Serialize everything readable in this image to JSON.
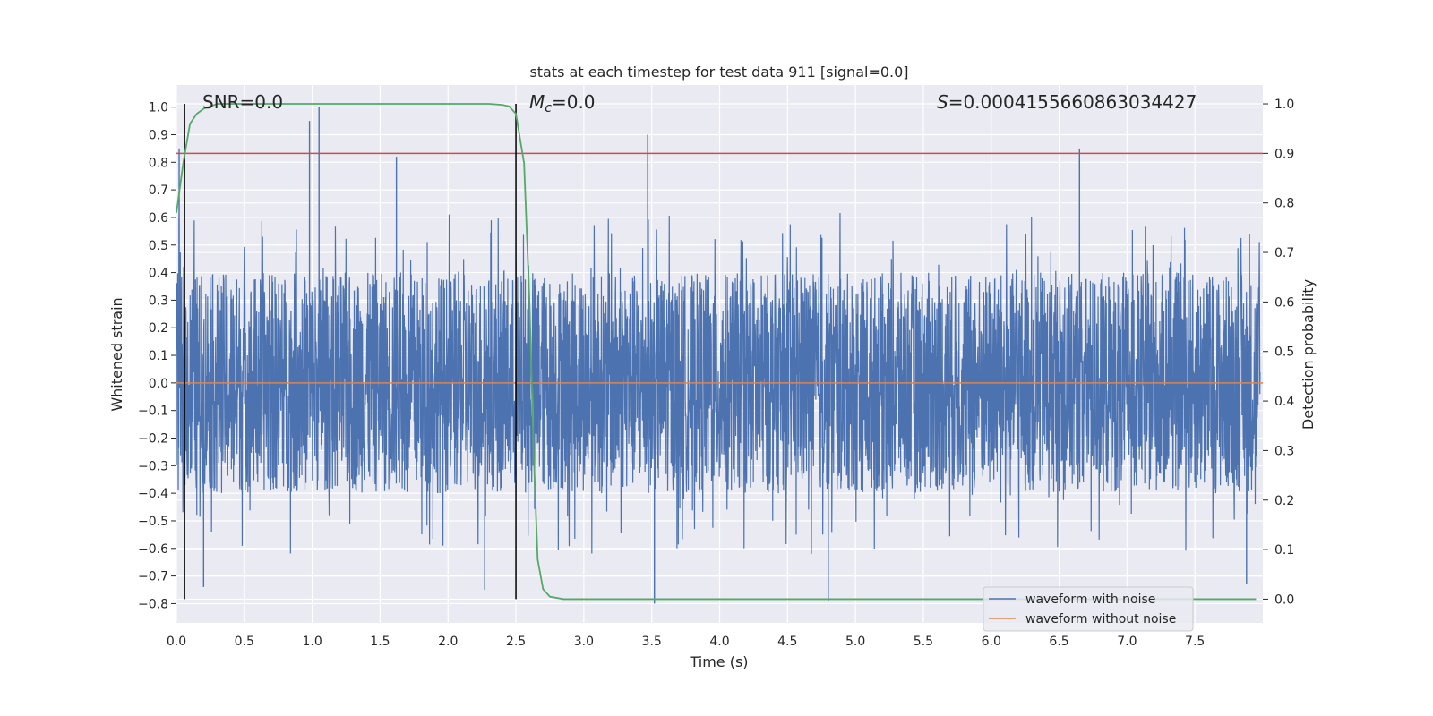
{
  "chart_data": {
    "type": "line",
    "title": "stats at each timestep for test data 911 [signal=0.0]",
    "xlabel": "Time (s)",
    "ylabel_left": "Whitened strain",
    "ylabel_right": "Detection probability",
    "xlim": [
      0.0,
      8.0
    ],
    "ylim_left": [
      -0.87,
      1.08
    ],
    "ylim_right": [
      -0.048,
      1.038
    ],
    "x_ticks": [
      "0.0",
      "0.5",
      "1.0",
      "1.5",
      "2.0",
      "2.5",
      "3.0",
      "3.5",
      "4.0",
      "4.5",
      "5.0",
      "5.5",
      "6.0",
      "6.5",
      "7.0",
      "7.5"
    ],
    "y_left_ticks": [
      "−0.8",
      "−0.7",
      "−0.6",
      "−0.5",
      "−0.4",
      "−0.3",
      "−0.2",
      "−0.1",
      "0.0",
      "0.1",
      "0.2",
      "0.3",
      "0.4",
      "0.5",
      "0.6",
      "0.7",
      "0.8",
      "0.9",
      "1.0"
    ],
    "y_right_ticks": [
      "0.0",
      "0.1",
      "0.2",
      "0.3",
      "0.4",
      "0.5",
      "0.6",
      "0.7",
      "0.8",
      "0.9",
      "1.0"
    ],
    "grid": true,
    "legend_position": "lower-right",
    "annotations": {
      "snr": "SNR=0.0",
      "mc_symbol": "M",
      "mc_sub": "c",
      "mc_value": "=0.0",
      "s_symbol": "S",
      "s_value": "=0.0004155660863034427"
    },
    "series": [
      {
        "name": "waveform with noise",
        "axis": "left",
        "color": "#4c72b0",
        "typical_amplitude": 0.4,
        "peaks": [
          {
            "x": 0.02,
            "y": 0.85
          },
          {
            "x": 0.98,
            "y": 0.95
          },
          {
            "x": 1.05,
            "y": 1.0
          },
          {
            "x": 1.62,
            "y": 0.82
          },
          {
            "x": 3.47,
            "y": 0.9
          },
          {
            "x": 6.65,
            "y": 0.85
          },
          {
            "x": 0.2,
            "y": -0.74
          },
          {
            "x": 3.52,
            "y": -0.8
          },
          {
            "x": 4.8,
            "y": -0.79
          },
          {
            "x": 7.88,
            "y": -0.73
          },
          {
            "x": 2.27,
            "y": -0.75
          }
        ]
      },
      {
        "name": "waveform without noise",
        "axis": "left",
        "color": "#dd8452",
        "x": [
          0.0,
          8.0
        ],
        "y": [
          0.0,
          0.0
        ]
      },
      {
        "axis": "right",
        "color": "#55a868",
        "x": [
          0.0,
          0.05,
          0.1,
          0.15,
          0.2,
          0.25,
          0.3,
          0.4,
          0.5,
          2.3,
          2.4,
          2.45,
          2.5,
          2.56,
          2.6,
          2.63,
          2.66,
          2.7,
          2.75,
          2.85,
          7.95
        ],
        "y": [
          0.78,
          0.88,
          0.96,
          0.98,
          0.99,
          0.995,
          1.0,
          1.0,
          1.0,
          1.0,
          0.998,
          0.995,
          0.98,
          0.88,
          0.6,
          0.3,
          0.08,
          0.02,
          0.005,
          0.0,
          0.0
        ]
      }
    ],
    "threshold": {
      "axis": "right",
      "y": 0.9,
      "color": "#c44e52"
    },
    "vlines": [
      {
        "x": 0.06,
        "color": "#000000"
      },
      {
        "x": 2.5,
        "color": "#000000"
      }
    ]
  }
}
